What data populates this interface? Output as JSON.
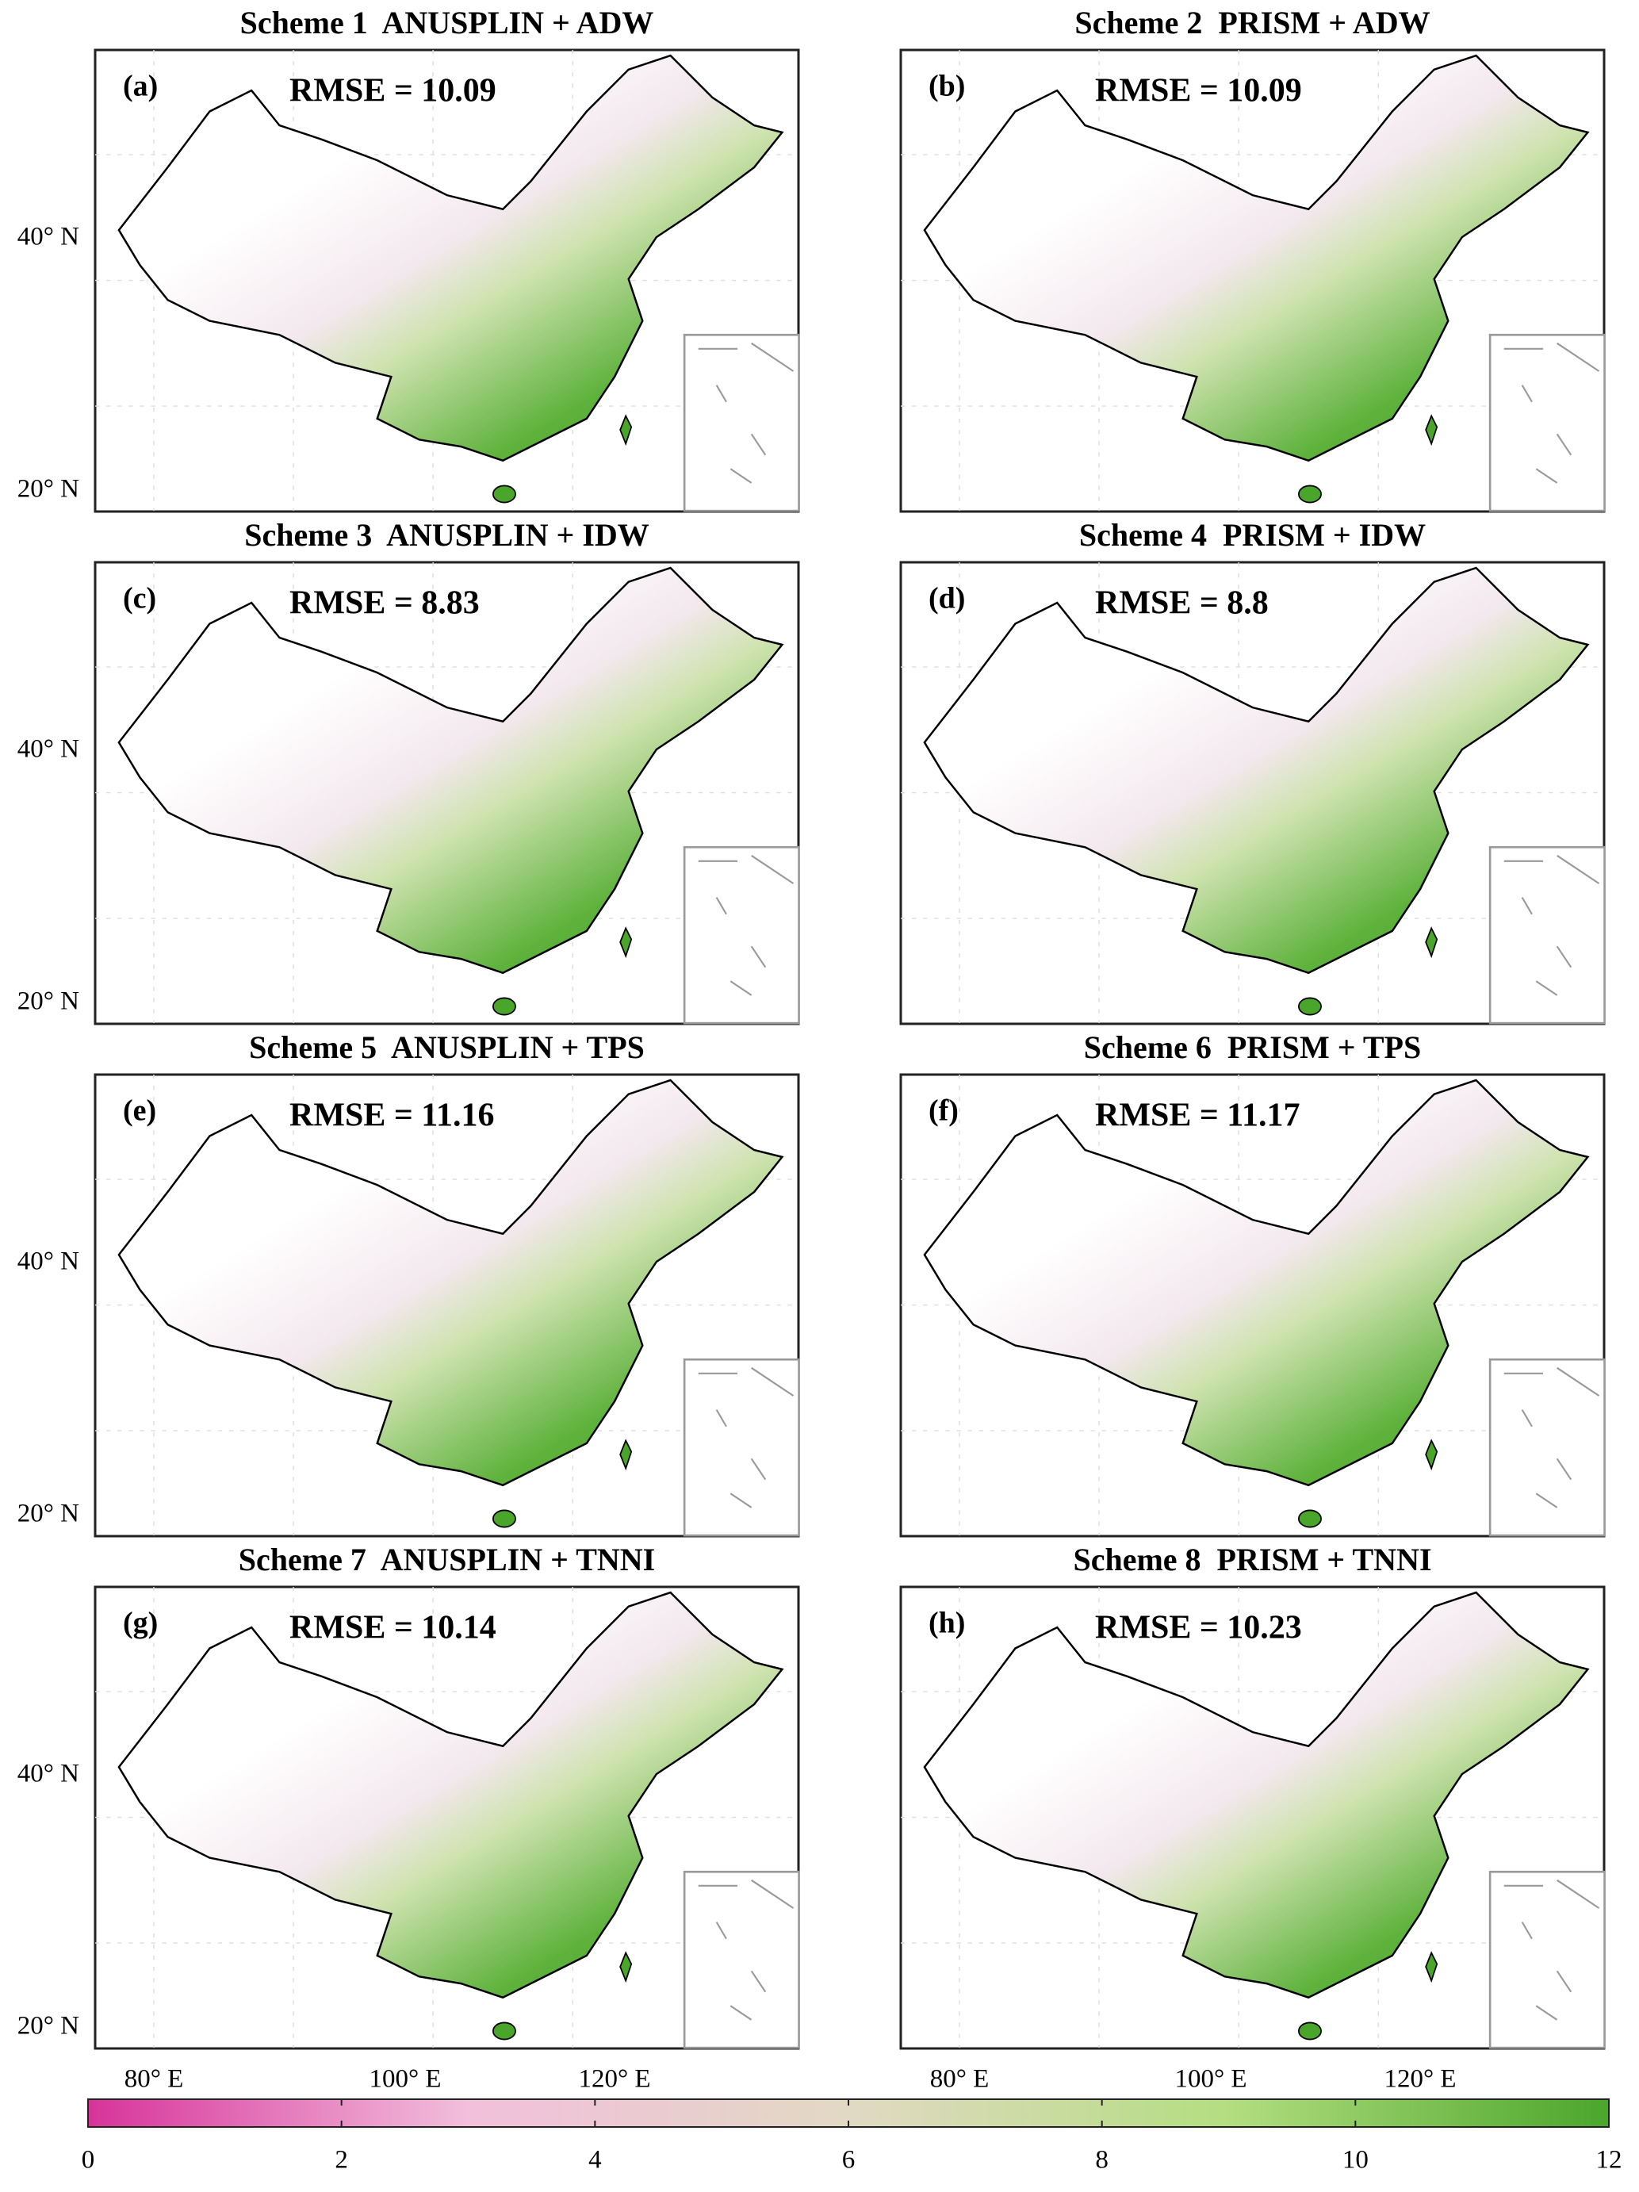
{
  "panels": [
    {
      "title": "Scheme 1  ANUSPLIN + ADW",
      "label": "(a)",
      "annotation": "RMSE = 10.09"
    },
    {
      "title": "Scheme 2  PRISM + ADW",
      "label": "(b)",
      "annotation": "RMSE = 10.09"
    },
    {
      "title": "Scheme 3  ANUSPLIN + IDW",
      "label": "(c)",
      "annotation": "RMSE = 8.83"
    },
    {
      "title": "Scheme 4  PRISM + IDW",
      "label": "(d)",
      "annotation": "RMSE = 8.8"
    },
    {
      "title": "Scheme 5  ANUSPLIN + TPS",
      "label": "(e)",
      "annotation": "RMSE = 11.16"
    },
    {
      "title": "Scheme 6  PRISM + TPS",
      "label": "(f)",
      "annotation": "RMSE = 11.17"
    },
    {
      "title": "Scheme 7  ANUSPLIN + TNNI",
      "label": "(g)",
      "annotation": "RMSE = 10.14"
    },
    {
      "title": "Scheme 8  PRISM + TNNI",
      "label": "(h)",
      "annotation": "RMSE = 10.23"
    }
  ],
  "lat_ticks": [
    "40° N",
    "20° N"
  ],
  "lon_ticks": [
    "80° E",
    "100° E",
    "120° E"
  ],
  "colorbar": {
    "range": [
      0,
      12
    ],
    "ticks": [
      0,
      2,
      4,
      6,
      8,
      10,
      12
    ],
    "colors": [
      "#d7339a",
      "#f2bfdc",
      "#e2d9c4",
      "#b3de80",
      "#4aa62b"
    ]
  }
}
